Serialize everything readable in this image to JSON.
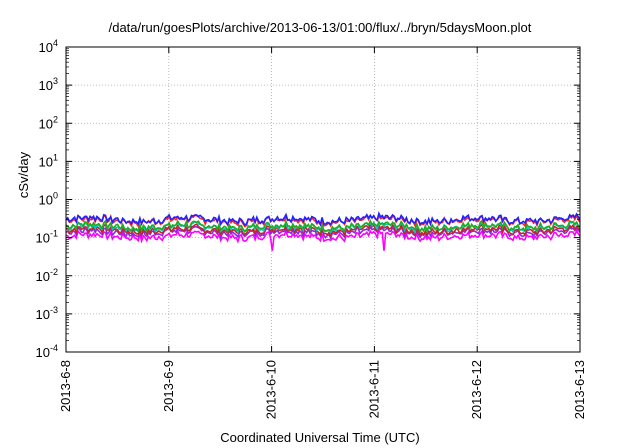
{
  "chart_data": {
    "type": "line",
    "title": "/data/run/goesPlots/archive/2013-06-13/01:00/flux/../bryn/5daysMoon.plot",
    "xlabel": "Coordinated Universal Time (UTC)",
    "ylabel": "cSv/day",
    "yscale": "log",
    "ylim": [
      0.0001,
      10000
    ],
    "y_ticks": [
      {
        "base": "10",
        "exp": "-4"
      },
      {
        "base": "10",
        "exp": "-3"
      },
      {
        "base": "10",
        "exp": "-2"
      },
      {
        "base": "10",
        "exp": "-1"
      },
      {
        "base": "10",
        "exp": "0"
      },
      {
        "base": "10",
        "exp": "1"
      },
      {
        "base": "10",
        "exp": "2"
      },
      {
        "base": "10",
        "exp": "3"
      },
      {
        "base": "10",
        "exp": "4"
      }
    ],
    "xlim": [
      "2013-06-08",
      "2013-06-13"
    ],
    "x_ticks": [
      "2013-6-8",
      "2013-6-9",
      "2013-6-10",
      "2013-6-11",
      "2013-6-12",
      "2013-6-13"
    ],
    "grid": true,
    "legend": "none",
    "series": [
      {
        "color": "#ff00ff",
        "level": 0.11,
        "min": 0.045
      },
      {
        "color": "#8a2be2",
        "level": 0.14
      },
      {
        "color": "#cc2222",
        "level": 0.16
      },
      {
        "color": "#00cccc",
        "level": 0.19
      },
      {
        "color": "#22aa22",
        "level": 0.2
      },
      {
        "color": "#ff2222",
        "level": 0.28
      },
      {
        "color": "#2222ff",
        "level": 0.3
      }
    ]
  }
}
